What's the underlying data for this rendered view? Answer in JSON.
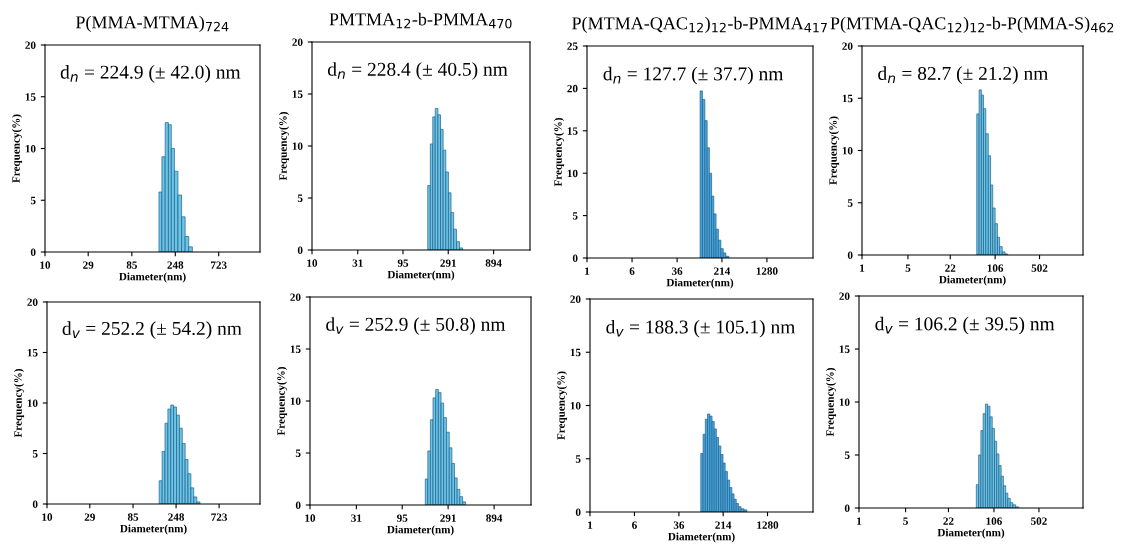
{
  "chart_data": [
    {
      "type": "bar",
      "title": "P(MMA-MTMA)$_{724}$",
      "xlabel": "Diameter(nm)",
      "ylabel": "Frequency(%)",
      "annotations": [
        "d$_{n}$ = 224.9 (± 42.0) nm"
      ],
      "log": "x",
      "xlim": [
        10,
        2000
      ],
      "xticks": [
        10,
        29,
        85,
        248,
        723
      ],
      "ylim": [
        0,
        20
      ],
      "yticks": [
        0,
        5,
        10,
        15,
        20
      ],
      "color": "#6cc4e6",
      "x": [
        172,
        185,
        202,
        217,
        233,
        253,
        277,
        303,
        330,
        361
      ],
      "values": [
        5.8,
        9.2,
        12.5,
        12.3,
        10.0,
        7.8,
        5.5,
        3.4,
        1.5,
        0.5
      ]
    },
    {
      "type": "bar",
      "title": "PMTMA$_{12}$-b-PMMA$_{470}$",
      "xlabel": "Diameter(nm)",
      "ylabel": "Frequency(%)",
      "annotations": [
        "d$_{n}$ = 228.4 (± 40.5) nm"
      ],
      "log": "x",
      "xlim": [
        10,
        2200
      ],
      "xticks": [
        10,
        31,
        95,
        291,
        894
      ],
      "ylim": [
        0,
        20
      ],
      "yticks": [
        0,
        5,
        10,
        15,
        20
      ],
      "color": "#6cc4e6",
      "x": [
        181,
        193,
        204,
        218,
        233,
        248,
        265,
        283,
        302,
        322,
        344,
        370,
        399
      ],
      "values": [
        6.2,
        10.2,
        12.8,
        13.6,
        13.0,
        11.6,
        9.6,
        7.5,
        5.5,
        3.6,
        2.0,
        0.8,
        0.2
      ]
    },
    {
      "type": "bar",
      "title": "P(MTMA-QAC$_{12}$)$_{12}$-b-PMMA$_{417}$",
      "xlabel": "Diameter(nm)",
      "ylabel": "Frequency(%)",
      "annotations": [
        "d$_{n}$ = 127.7 (± 37.7) nm"
      ],
      "log": "x",
      "xlim": [
        1,
        8000
      ],
      "xticks": [
        1,
        6,
        36,
        214,
        1280
      ],
      "ylim": [
        0,
        25
      ],
      "yticks": [
        0,
        5,
        10,
        15,
        20,
        25
      ],
      "color": "#4aa8e0",
      "x": [
        94,
        103,
        114,
        124,
        136,
        148,
        162,
        177,
        195,
        216,
        236,
        266
      ],
      "values": [
        19.7,
        18.7,
        16.2,
        13.0,
        10.0,
        7.3,
        5.2,
        3.4,
        2.1,
        1.1,
        0.6,
        0.2
      ]
    },
    {
      "type": "bar",
      "title": "P(MTMA-QAC$_{12}$)$_{12}$-b-P(MMA-S)$_{462}$",
      "xlabel": "Diameter(nm)",
      "ylabel": "Frequency(%)",
      "annotations": [
        "d$_{n}$ = 82.7 (± 21.2) nm"
      ],
      "log": "x",
      "xlim": [
        1,
        2300
      ],
      "xticks": [
        1,
        5,
        22,
        106,
        502
      ],
      "ylim": [
        0,
        20
      ],
      "yticks": [
        0,
        5,
        10,
        15,
        20
      ],
      "color": "#6cc4e6",
      "x": [
        58,
        63,
        68,
        73,
        80,
        87,
        94,
        101,
        111,
        119,
        129,
        143,
        157
      ],
      "values": [
        13.5,
        15.8,
        15.3,
        14.0,
        11.6,
        9.5,
        6.7,
        4.5,
        3.0,
        1.7,
        0.8,
        0.3,
        0.1
      ]
    },
    {
      "type": "bar",
      "xlabel": "Diameter(nm)",
      "ylabel": "Frequency(%)",
      "annotations": [
        "d$_{v}$ = 252.2 (± 54.2) nm"
      ],
      "log": "x",
      "xlim": [
        10,
        2000
      ],
      "xticks": [
        10,
        29,
        85,
        248,
        723
      ],
      "ylim": [
        0,
        20
      ],
      "yticks": [
        0,
        5,
        10,
        15,
        20
      ],
      "color": "#6cc4e6",
      "x": [
        169,
        182,
        195,
        210,
        225,
        242,
        260,
        279,
        300,
        322,
        346,
        371,
        399,
        432
      ],
      "values": [
        2.3,
        5.2,
        8.0,
        9.4,
        9.8,
        9.6,
        8.8,
        7.5,
        6.0,
        4.4,
        3.0,
        1.6,
        0.7,
        0.2
      ]
    },
    {
      "type": "bar",
      "xlabel": "Diameter(nm)",
      "ylabel": "Frequency(%)",
      "annotations": [
        "d$_{v}$ = 252.9 (± 50.8) nm"
      ],
      "log": "x",
      "xlim": [
        10,
        2200
      ],
      "xticks": [
        10,
        31,
        95,
        291,
        894
      ],
      "ylim": [
        0,
        20
      ],
      "yticks": [
        0,
        5,
        10,
        15,
        20
      ],
      "color": "#6cc4e6",
      "x": [
        172,
        183,
        195,
        208,
        222,
        237,
        253,
        269,
        290,
        309,
        330,
        351,
        375,
        400,
        430
      ],
      "values": [
        2.5,
        5.2,
        8.2,
        10.3,
        11.1,
        10.8,
        9.8,
        8.4,
        7.0,
        5.5,
        4.0,
        2.6,
        1.5,
        0.8,
        0.3
      ]
    },
    {
      "type": "bar",
      "xlabel": "Diameter(nm)",
      "ylabel": "Frequency(%)",
      "annotations": [
        "d$_{v}$ = 188.3 (± 105.1) nm"
      ],
      "log": "x",
      "xlim": [
        1,
        8000
      ],
      "xticks": [
        1,
        6,
        36,
        214,
        1280
      ],
      "ylim": [
        0,
        20
      ],
      "yticks": [
        0,
        5,
        10,
        15,
        20
      ],
      "color": "#4aa8e0",
      "x": [
        91,
        100,
        109,
        119,
        131,
        143,
        156,
        170,
        186,
        204,
        222,
        243,
        266,
        290,
        318,
        347,
        379,
        414,
        467,
        525
      ],
      "values": [
        5.5,
        7.3,
        8.7,
        9.2,
        9.0,
        8.5,
        7.8,
        7.0,
        6.2,
        5.4,
        4.6,
        3.8,
        3.0,
        2.3,
        1.7,
        1.2,
        0.8,
        0.5,
        0.3,
        0.2
      ]
    },
    {
      "type": "bar",
      "xlabel": "Diameter(nm)",
      "ylabel": "Frequency(%)",
      "annotations": [
        "d$_{v}$ = 106.2 (± 39.5) nm"
      ],
      "log": "x",
      "xlim": [
        1,
        2300
      ],
      "xticks": [
        1,
        5,
        22,
        106,
        502
      ],
      "ylim": [
        0,
        20
      ],
      "yticks": [
        0,
        5,
        10,
        15,
        20
      ],
      "color": "#6cc4e6",
      "x": [
        60,
        65,
        70,
        76,
        82,
        89,
        96,
        104,
        112,
        121,
        131,
        141,
        153,
        165,
        178,
        195,
        213,
        237
      ],
      "values": [
        2.2,
        5.0,
        7.3,
        8.9,
        9.8,
        9.6,
        8.6,
        7.5,
        6.3,
        5.1,
        4.0,
        3.0,
        2.1,
        1.4,
        0.9,
        0.5,
        0.3,
        0.1
      ]
    }
  ]
}
